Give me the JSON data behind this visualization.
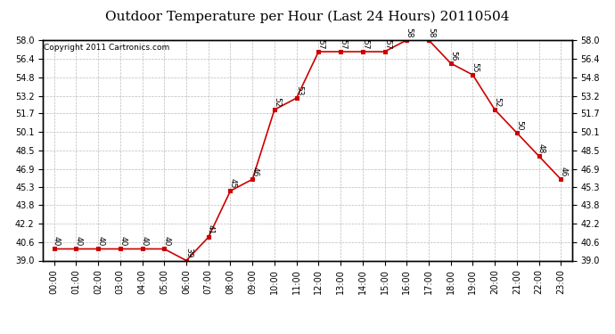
{
  "title": "Outdoor Temperature per Hour (Last 24 Hours) 20110504",
  "copyright": "Copyright 2011 Cartronics.com",
  "hours": [
    "00:00",
    "01:00",
    "02:00",
    "03:00",
    "04:00",
    "05:00",
    "06:00",
    "07:00",
    "08:00",
    "09:00",
    "10:00",
    "11:00",
    "12:00",
    "13:00",
    "14:00",
    "15:00",
    "16:00",
    "17:00",
    "18:00",
    "19:00",
    "20:00",
    "21:00",
    "22:00",
    "23:00"
  ],
  "temps": [
    40,
    40,
    40,
    40,
    40,
    40,
    39,
    41,
    45,
    46,
    52,
    53,
    57,
    57,
    57,
    57,
    58,
    58,
    56,
    55,
    52,
    50,
    48,
    46
  ],
  "line_color": "#cc0000",
  "marker_color": "#cc0000",
  "grid_color": "#bbbbbb",
  "bg_color": "#ffffff",
  "title_fontsize": 11,
  "copyright_fontsize": 6.5,
  "label_fontsize": 6.5,
  "tick_fontsize": 7,
  "ylim": [
    39.0,
    58.0
  ],
  "yticks": [
    39.0,
    40.6,
    42.2,
    43.8,
    45.3,
    46.9,
    48.5,
    50.1,
    51.7,
    53.2,
    54.8,
    56.4,
    58.0
  ]
}
